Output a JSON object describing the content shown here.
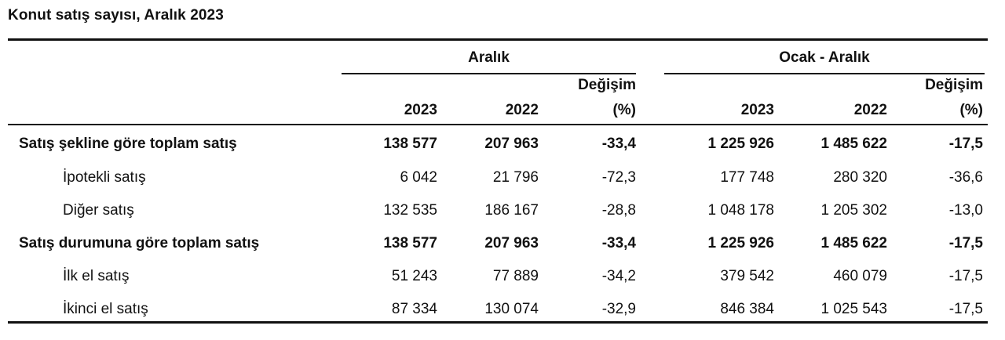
{
  "title": "Konut satış sayısı, Aralık 2023",
  "groups": {
    "aralik": "Aralık",
    "ocak_aralik": "Ocak - Aralık"
  },
  "headers": {
    "g1_y2023": "2023",
    "g1_y2022": "2022",
    "g1_change_l1": "Değişim",
    "g1_change_l2": "(%)",
    "g2_y2023": "2023",
    "g2_y2022": "2022",
    "g2_change_l1": "Değişim",
    "g2_change_l2": "(%)"
  },
  "rows": [
    {
      "label": "Satış şekline göre toplam satış",
      "bold": true,
      "values": [
        "138 577",
        "207 963",
        "-33,4",
        "1 225 926",
        "1 485 622",
        "-17,5"
      ]
    },
    {
      "label": "İpotekli satış",
      "bold": false,
      "values": [
        "6 042",
        "21 796",
        "-72,3",
        "177 748",
        "280 320",
        "-36,6"
      ]
    },
    {
      "label": "Diğer satış",
      "bold": false,
      "values": [
        "132 535",
        "186 167",
        "-28,8",
        "1 048 178",
        "1 205 302",
        "-13,0"
      ]
    },
    {
      "label": "Satış durumuna göre toplam satış",
      "bold": true,
      "values": [
        "138 577",
        "207 963",
        "-33,4",
        "1 225 926",
        "1 485 622",
        "-17,5"
      ]
    },
    {
      "label": "İlk el satış",
      "bold": false,
      "values": [
        "51 243",
        "77 889",
        "-34,2",
        "379 542",
        "460 079",
        "-17,5"
      ]
    },
    {
      "label": "İkinci el satış",
      "bold": false,
      "values": [
        "87 334",
        "130 074",
        "-32,9",
        "846 384",
        "1 025 543",
        "-17,5"
      ]
    }
  ]
}
